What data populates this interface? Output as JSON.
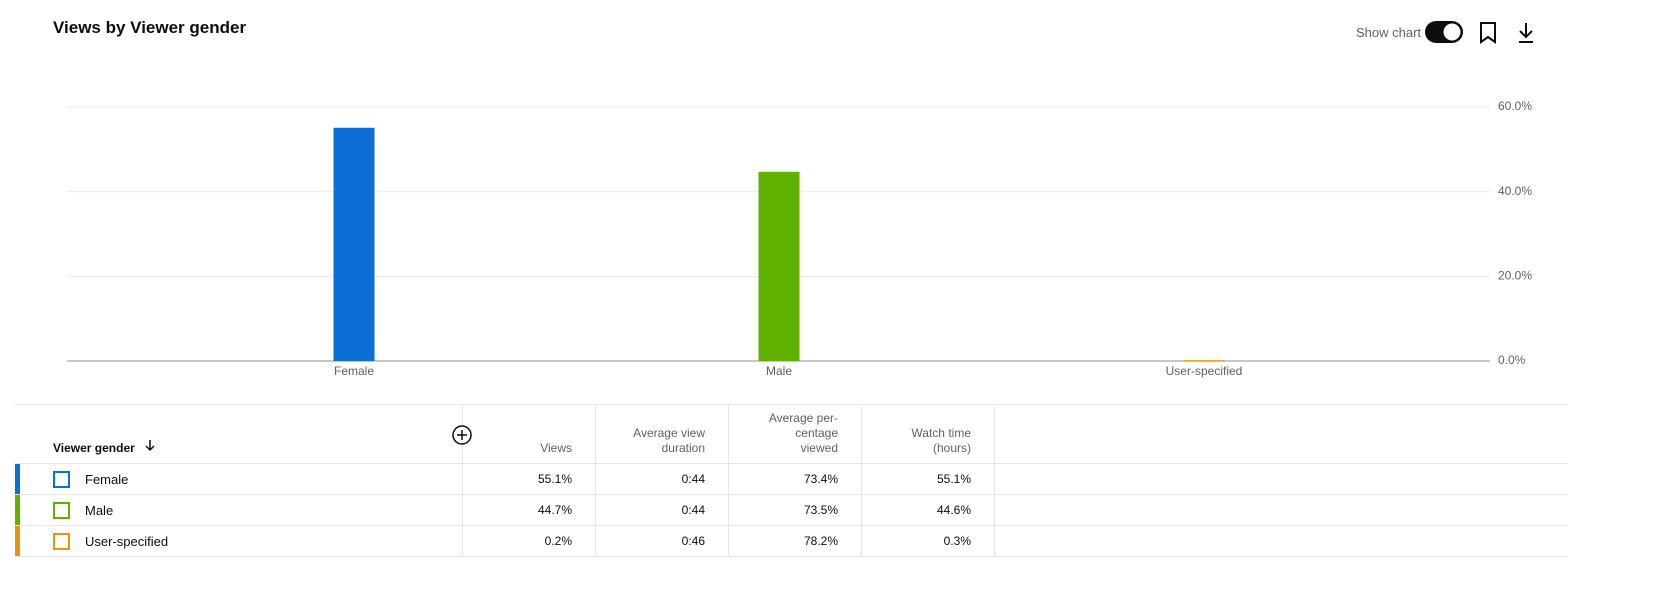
{
  "header": {
    "title": "Views by Viewer gender",
    "show_chart": "Show chart"
  },
  "chart_data": {
    "type": "bar",
    "categories": [
      "Female",
      "Male",
      "User-specified"
    ],
    "values": [
      55.1,
      44.7,
      0.2
    ],
    "colors": [
      "#0b6fd6",
      "#60b000",
      "#e8930c"
    ],
    "ylim": [
      0,
      60
    ],
    "yticks": [
      {
        "value": 0,
        "label": "0.0%"
      },
      {
        "value": 20,
        "label": "20.0%"
      },
      {
        "value": 40,
        "label": "40.0%"
      },
      {
        "value": 60,
        "label": "60.0%"
      }
    ],
    "grid": true
  },
  "table": {
    "columns": [
      [
        "Viewer gender"
      ],
      [
        "Views"
      ],
      [
        "Average view",
        "duration"
      ],
      [
        "Average per-",
        "centage",
        "viewed"
      ],
      [
        "Watch time",
        "(hours)"
      ]
    ],
    "rows": [
      [
        "Female",
        "55.1%",
        "0:44",
        "73.4%",
        "55.1%"
      ],
      [
        "Male",
        "44.7%",
        "0:44",
        "73.5%",
        "44.6%"
      ],
      [
        "User-specified",
        "0.2%",
        "0:46",
        "78.2%",
        "0.3%"
      ]
    ]
  }
}
